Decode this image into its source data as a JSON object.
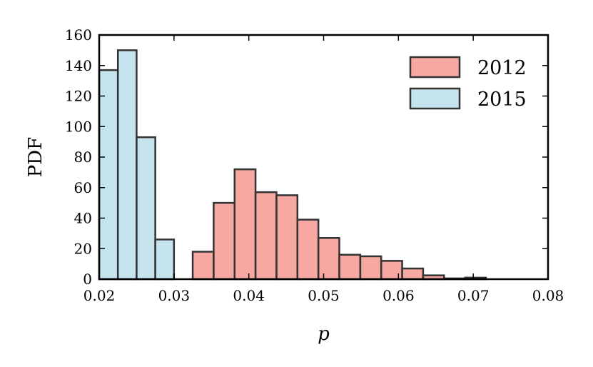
{
  "chart_data": {
    "type": "bar",
    "xlabel": "p",
    "ylabel": "PDF",
    "xlim": [
      0.02,
      0.08
    ],
    "ylim": [
      0,
      160
    ],
    "xticks": [
      "0.02",
      "0.03",
      "0.04",
      "0.05",
      "0.06",
      "0.07",
      "0.08"
    ],
    "yticks": [
      "0",
      "20",
      "40",
      "60",
      "80",
      "100",
      "120",
      "140",
      "160"
    ],
    "grid": false,
    "legend_position": "top-right",
    "series": [
      {
        "name": "2012",
        "color": "#f4837a",
        "bins": [
          {
            "x0": 0.0325,
            "x1": 0.0353,
            "y": 18
          },
          {
            "x0": 0.0353,
            "x1": 0.0381,
            "y": 50
          },
          {
            "x0": 0.0381,
            "x1": 0.0409,
            "y": 72
          },
          {
            "x0": 0.0409,
            "x1": 0.0437,
            "y": 57
          },
          {
            "x0": 0.0437,
            "x1": 0.0465,
            "y": 55
          },
          {
            "x0": 0.0465,
            "x1": 0.0493,
            "y": 39
          },
          {
            "x0": 0.0493,
            "x1": 0.0521,
            "y": 27
          },
          {
            "x0": 0.0521,
            "x1": 0.0549,
            "y": 16
          },
          {
            "x0": 0.0549,
            "x1": 0.0577,
            "y": 15
          },
          {
            "x0": 0.0577,
            "x1": 0.0605,
            "y": 12
          },
          {
            "x0": 0.0605,
            "x1": 0.0633,
            "y": 7
          },
          {
            "x0": 0.0633,
            "x1": 0.0661,
            "y": 2.5
          },
          {
            "x0": 0.0661,
            "x1": 0.0689,
            "y": 0.5
          },
          {
            "x0": 0.0689,
            "x1": 0.0717,
            "y": 1
          }
        ]
      },
      {
        "name": "2015",
        "color": "#add8e6",
        "bins": [
          {
            "x0": 0.02,
            "x1": 0.0225,
            "y": 137
          },
          {
            "x0": 0.0225,
            "x1": 0.025,
            "y": 150
          },
          {
            "x0": 0.025,
            "x1": 0.0275,
            "y": 93
          },
          {
            "x0": 0.0275,
            "x1": 0.03,
            "y": 26
          }
        ]
      }
    ]
  }
}
